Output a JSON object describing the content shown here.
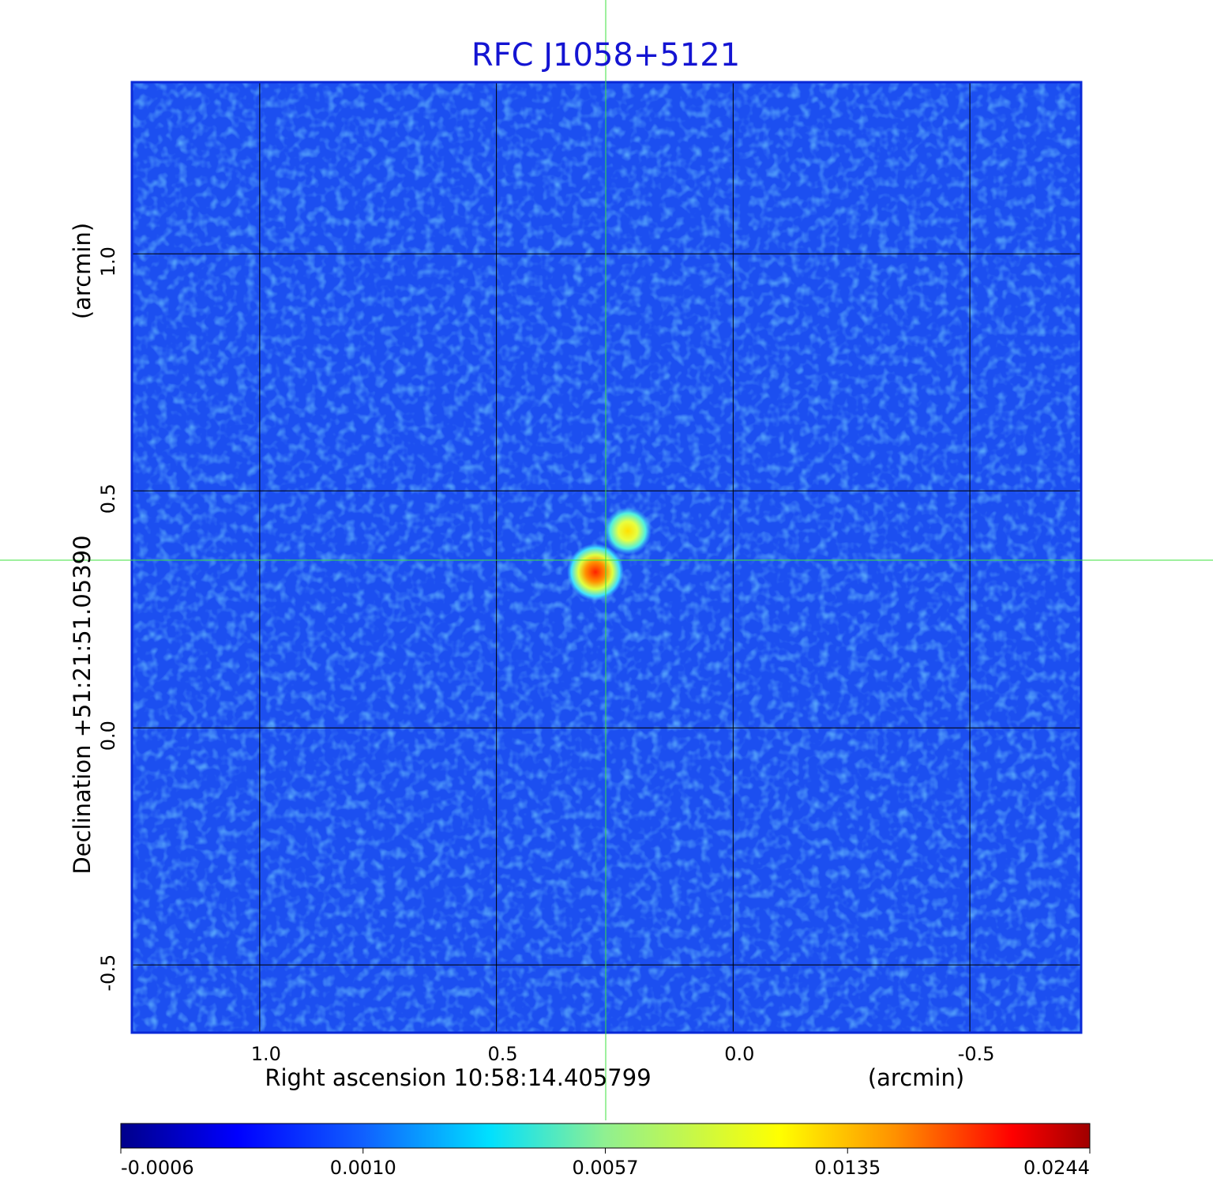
{
  "chart_data": {
    "type": "image",
    "title": "RFC J1058+5121",
    "x_label": "Right ascension  10:58:14.405799",
    "x_unit": "(arcmin)",
    "y_label": "Declination  +51:21:51.05390",
    "y_unit": "(arcmin)",
    "xlim": [
      1.27,
      -0.735
    ],
    "ylim": [
      -0.643,
      1.362
    ],
    "xticks": [
      {
        "value": 1.0,
        "label": "1.0"
      },
      0.5,
      {
        "value": 0.0,
        "label": "0.0"
      },
      -0.5
    ],
    "yticks": [
      -0.5,
      {
        "value": 0.0,
        "label": "0.0"
      },
      0.5,
      {
        "value": 1.0,
        "label": "1.0"
      }
    ],
    "grid": true,
    "colorbar_ticks": [
      -0.0006,
      {
        "value": 0.001,
        "label": "0.0010"
      },
      0.0057,
      0.0135,
      0.0244
    ]
  }
}
